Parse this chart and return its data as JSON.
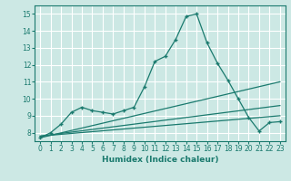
{
  "title": "",
  "xlabel": "Humidex (Indice chaleur)",
  "ylabel": "",
  "bg_color": "#cce8e4",
  "grid_color": "#ffffff",
  "line_color": "#1a7a6e",
  "xlim": [
    -0.5,
    23.5
  ],
  "ylim": [
    7.5,
    15.5
  ],
  "xticks": [
    0,
    1,
    2,
    3,
    4,
    5,
    6,
    7,
    8,
    9,
    10,
    11,
    12,
    13,
    14,
    15,
    16,
    17,
    18,
    19,
    20,
    21,
    22,
    23
  ],
  "yticks": [
    8,
    9,
    10,
    11,
    12,
    13,
    14,
    15
  ],
  "line1_x": [
    0,
    1,
    2,
    3,
    4,
    5,
    6,
    7,
    8,
    9,
    10,
    11,
    12,
    13,
    14,
    15,
    16,
    17,
    18,
    19,
    20,
    21,
    22,
    23
  ],
  "line1_y": [
    7.7,
    8.0,
    8.5,
    9.2,
    9.5,
    9.3,
    9.2,
    9.1,
    9.3,
    9.5,
    10.7,
    12.2,
    12.5,
    13.5,
    14.85,
    15.0,
    13.3,
    12.1,
    11.1,
    10.0,
    8.9,
    8.1,
    8.6,
    8.65
  ],
  "line2_x": [
    0,
    23
  ],
  "line2_y": [
    7.7,
    11.0
  ],
  "line3_x": [
    0,
    23
  ],
  "line3_y": [
    7.8,
    9.6
  ],
  "line4_x": [
    0,
    23
  ],
  "line4_y": [
    7.8,
    9.0
  ]
}
